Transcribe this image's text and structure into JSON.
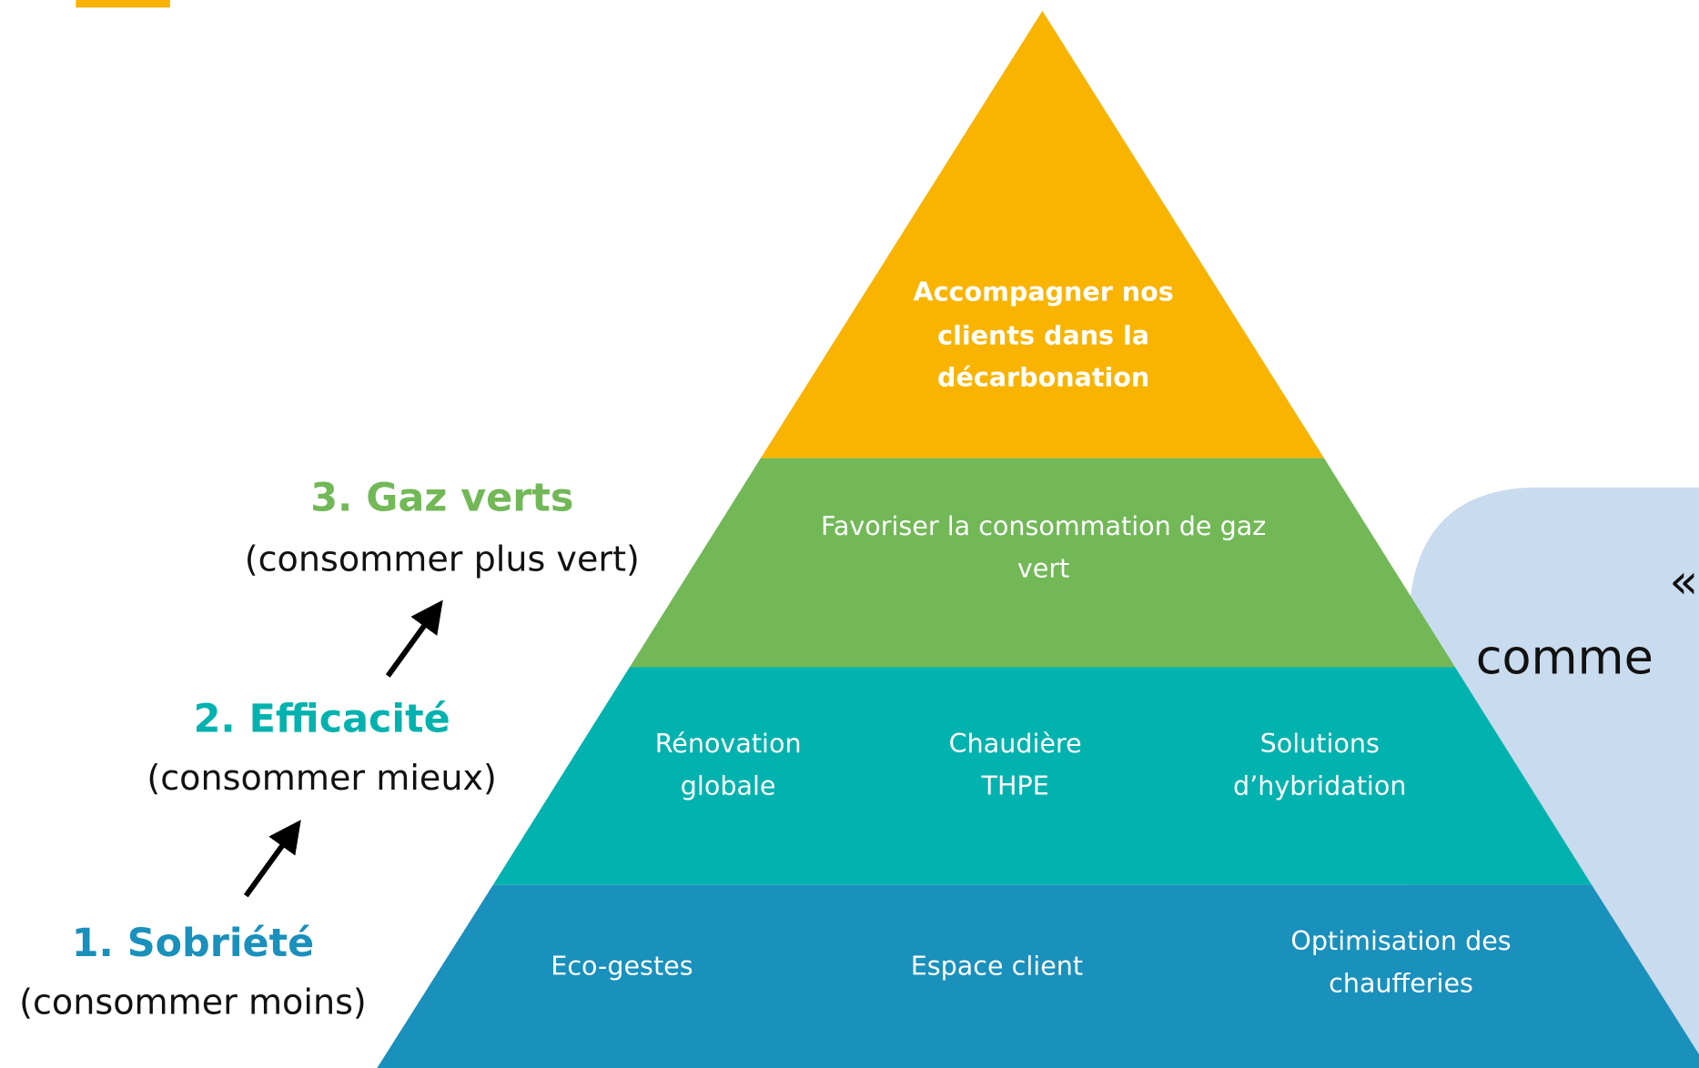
{
  "steps": [
    {
      "title": "3. Gaz verts",
      "subtitle": "(consommer plus vert)"
    },
    {
      "title": "2. Efficacité",
      "subtitle": "(consommer mieux)"
    },
    {
      "title": "1. Sobriété",
      "subtitle": "(consommer moins)"
    }
  ],
  "pyramid": {
    "levels": [
      {
        "items": [
          {
            "lines": [
              "Accompagner nos",
              "clients dans la",
              "décarbonation"
            ]
          }
        ]
      },
      {
        "items": [
          {
            "lines": [
              "Favoriser la consommation de gaz",
              "vert"
            ]
          }
        ]
      },
      {
        "items": [
          {
            "lines": [
              "Rénovation",
              "globale"
            ]
          },
          {
            "lines": [
              "Chaudière",
              "THPE"
            ]
          },
          {
            "lines": [
              "Solutions",
              "d’hybridation"
            ]
          }
        ]
      },
      {
        "items": [
          {
            "lines": [
              "Eco-gestes"
            ]
          },
          {
            "lines": [
              "Espace client"
            ]
          },
          {
            "lines": [
              "Optimisation des",
              "chaufferies"
            ]
          }
        ]
      }
    ]
  },
  "callout": {
    "lines": [
      "«",
      "comme"
    ]
  }
}
